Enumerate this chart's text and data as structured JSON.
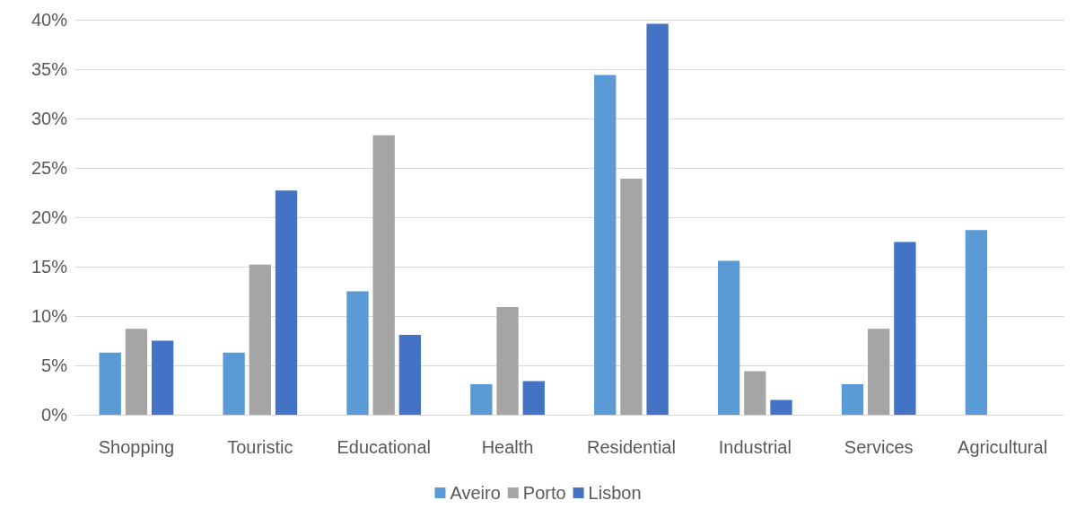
{
  "chart_data": {
    "type": "bar",
    "categories": [
      "Shopping",
      "Touristic",
      "Educational",
      "Health",
      "Residential",
      "Industrial",
      "Services",
      "Agricultural"
    ],
    "series": [
      {
        "name": "Aveiro",
        "color": "#5b9bd5",
        "values": [
          6.3,
          6.3,
          12.5,
          3.1,
          34.4,
          15.6,
          3.1,
          18.7
        ]
      },
      {
        "name": "Porto",
        "color": "#a5a5a5",
        "values": [
          8.7,
          15.2,
          28.3,
          10.9,
          23.9,
          4.4,
          8.7,
          null
        ]
      },
      {
        "name": "Lisbon",
        "color": "#4472c4",
        "values": [
          7.5,
          22.7,
          8.1,
          3.4,
          39.6,
          1.5,
          17.5,
          null
        ]
      }
    ],
    "ylim": [
      0,
      40
    ],
    "yticks": [
      {
        "value": 0,
        "label": "0%"
      },
      {
        "value": 5,
        "label": "5%"
      },
      {
        "value": 10,
        "label": "10%"
      },
      {
        "value": 15,
        "label": "15%"
      },
      {
        "value": 20,
        "label": "20%"
      },
      {
        "value": 25,
        "label": "25%"
      },
      {
        "value": 30,
        "label": "30%"
      },
      {
        "value": 35,
        "label": "35%"
      },
      {
        "value": 40,
        "label": "40%"
      }
    ],
    "grid": "y",
    "legend": "bottom"
  }
}
